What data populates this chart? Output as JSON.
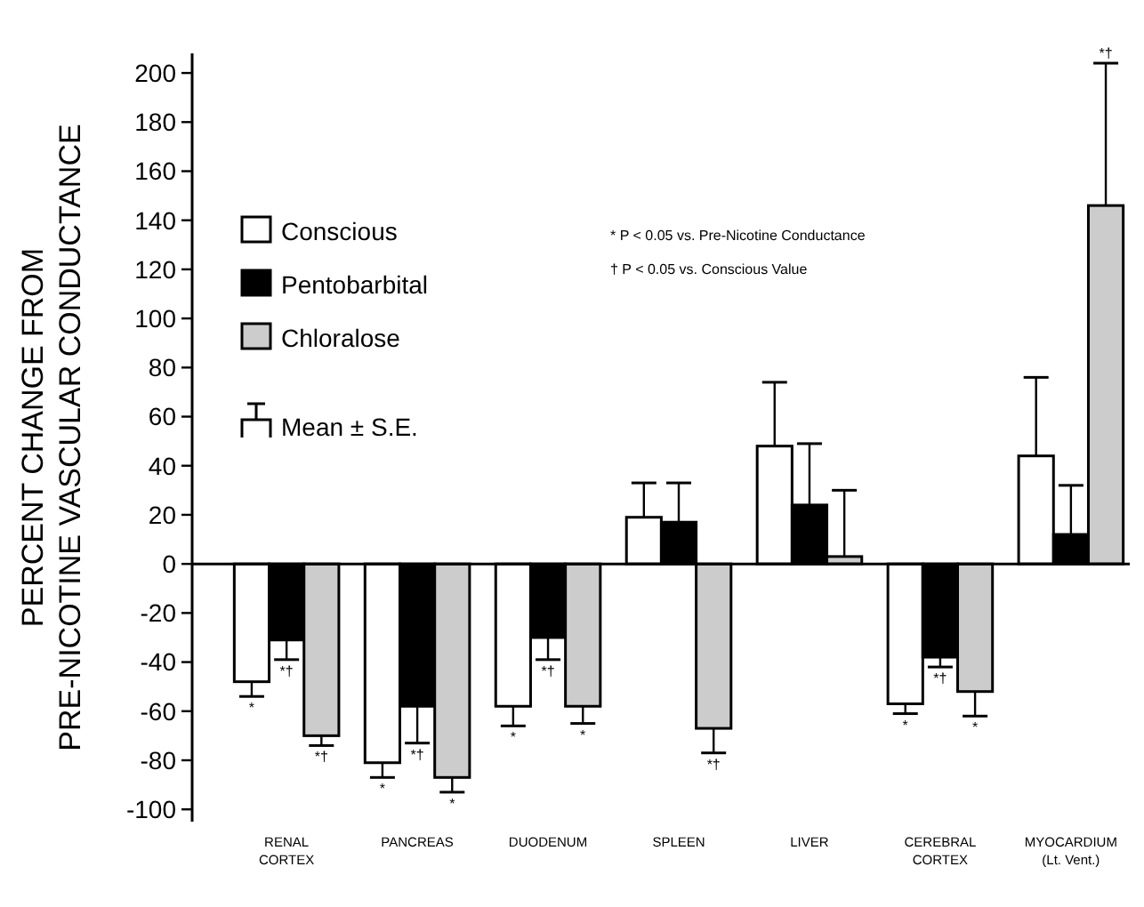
{
  "chart_data": {
    "type": "bar",
    "ylabel": "PERCENT CHANGE FROM\nPRE-NICOTINE VASCULAR CONDUCTANCE",
    "categories": [
      "RENAL\nCORTEX",
      "PANCREAS",
      "DUODENUM",
      "SPLEEN",
      "LIVER",
      "CEREBRAL\nCORTEX",
      "MYOCARDIUM\n(Lt. Vent.)"
    ],
    "series": [
      {
        "name": "Conscious",
        "color": "#ffffff",
        "values": [
          -48,
          -81,
          -58,
          19,
          48,
          -57,
          44
        ],
        "errors": [
          6,
          6,
          8,
          14,
          26,
          4,
          32
        ],
        "value_labels": [
          "*",
          "*",
          "*",
          null,
          null,
          "*",
          null
        ]
      },
      {
        "name": "Pentobarbital",
        "color": "#000000",
        "values": [
          -31,
          -58,
          -30,
          17,
          24,
          -38,
          12
        ],
        "errors": [
          8,
          15,
          9,
          16,
          25,
          4,
          20
        ],
        "value_labels": [
          "*†",
          "*†",
          "*†",
          null,
          null,
          "*†",
          null
        ]
      },
      {
        "name": "Chloralose",
        "color": "#cccccc",
        "values": [
          -70,
          -87,
          -58,
          -67,
          3,
          -52,
          146
        ],
        "errors": [
          4,
          6,
          7,
          10,
          27,
          10,
          58
        ],
        "value_labels": [
          "*†",
          "*",
          "*",
          "*†",
          null,
          "*",
          null
        ]
      }
    ],
    "ylim": [
      -105,
      208
    ],
    "yticks": [
      -100,
      -80,
      -60,
      -40,
      -20,
      0,
      20,
      40,
      60,
      80,
      100,
      120,
      140,
      160,
      180,
      200
    ],
    "legend": "top left",
    "annotations": [
      "Mean ± S.E.",
      "* P < 0.05 vs. Pre-Nicotine Conductance",
      "† P < 0.05 vs. Conscious Value",
      "*†"
    ]
  }
}
